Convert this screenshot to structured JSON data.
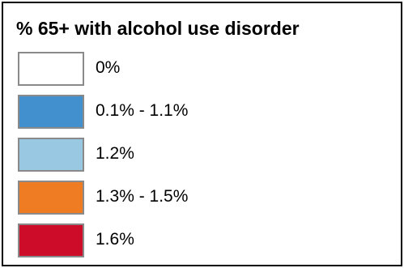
{
  "legend": {
    "title": "% 65+ with alcohol use disorder",
    "items": [
      {
        "label": "0%",
        "color": "#ffffff"
      },
      {
        "label": "0.1% - 1.1%",
        "color": "#4290cd"
      },
      {
        "label": "1.2%",
        "color": "#99c8e2"
      },
      {
        "label": "1.3% - 1.5%",
        "color": "#ef7b23"
      },
      {
        "label": "1.6%",
        "color": "#cd0c2a"
      }
    ]
  }
}
